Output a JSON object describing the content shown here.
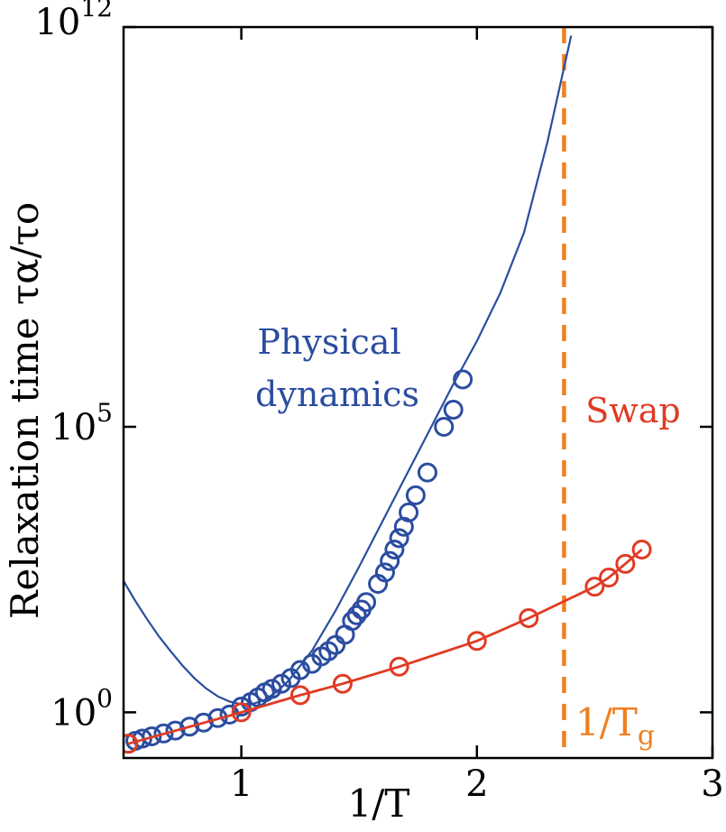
{
  "chart_data": {
    "type": "scatter",
    "xlabel": "1/T",
    "ylabel": "Relaxation time τα/τo",
    "xlim": [
      0.5,
      3.0
    ],
    "ylim_log10": [
      -0.8,
      12.0
    ],
    "x_ticks": [
      {
        "value": 1,
        "label": "1"
      },
      {
        "value": 2,
        "label": "2"
      },
      {
        "value": 3,
        "label": "3"
      }
    ],
    "y_ticks": [
      {
        "value": 0,
        "base": "10",
        "exp": "0"
      },
      {
        "value": 5,
        "base": "10",
        "exp": "5"
      },
      {
        "value": 12,
        "base": "10",
        "exp": "12"
      }
    ],
    "series": [
      {
        "name": "Physical dynamics",
        "label_lines": [
          "Physical",
          "dynamics"
        ],
        "color": "#2b4da0",
        "points": [
          [
            0.52,
            -0.55
          ],
          [
            0.55,
            -0.5
          ],
          [
            0.58,
            -0.46
          ],
          [
            0.62,
            -0.42
          ],
          [
            0.67,
            -0.37
          ],
          [
            0.72,
            -0.32
          ],
          [
            0.78,
            -0.25
          ],
          [
            0.84,
            -0.18
          ],
          [
            0.9,
            -0.1
          ],
          [
            0.95,
            -0.04
          ],
          [
            1.0,
            0.1
          ],
          [
            1.04,
            0.18
          ],
          [
            1.07,
            0.26
          ],
          [
            1.1,
            0.35
          ],
          [
            1.13,
            0.41
          ],
          [
            1.17,
            0.5
          ],
          [
            1.21,
            0.6
          ],
          [
            1.25,
            0.74
          ],
          [
            1.3,
            0.85
          ],
          [
            1.34,
            0.98
          ],
          [
            1.37,
            1.07
          ],
          [
            1.4,
            1.18
          ],
          [
            1.44,
            1.36
          ],
          [
            1.47,
            1.6
          ],
          [
            1.49,
            1.7
          ],
          [
            1.51,
            1.8
          ],
          [
            1.53,
            1.93
          ],
          [
            1.58,
            2.25
          ],
          [
            1.61,
            2.45
          ],
          [
            1.63,
            2.65
          ],
          [
            1.65,
            2.85
          ],
          [
            1.67,
            3.05
          ],
          [
            1.69,
            3.25
          ],
          [
            1.71,
            3.5
          ],
          [
            1.74,
            3.8
          ],
          [
            1.79,
            4.2
          ],
          [
            1.86,
            5.0
          ],
          [
            1.9,
            5.3
          ],
          [
            1.94,
            5.83
          ]
        ],
        "fit": [
          [
            0.5,
            2.3
          ],
          [
            0.55,
            1.95
          ],
          [
            0.6,
            1.63
          ],
          [
            0.65,
            1.33
          ],
          [
            0.7,
            1.07
          ],
          [
            0.75,
            0.82
          ],
          [
            0.8,
            0.6
          ],
          [
            0.85,
            0.42
          ],
          [
            0.9,
            0.28
          ],
          [
            0.95,
            0.19
          ],
          [
            1.0,
            0.14
          ],
          [
            1.05,
            0.15
          ],
          [
            1.1,
            0.22
          ],
          [
            1.15,
            0.36
          ],
          [
            1.2,
            0.55
          ],
          [
            1.3,
            1.08
          ],
          [
            1.4,
            1.78
          ],
          [
            1.5,
            2.55
          ],
          [
            1.6,
            3.35
          ],
          [
            1.7,
            4.15
          ],
          [
            1.8,
            4.95
          ],
          [
            1.9,
            5.75
          ],
          [
            2.0,
            6.5
          ],
          [
            2.1,
            7.35
          ],
          [
            2.2,
            8.4
          ],
          [
            2.3,
            10.0
          ],
          [
            2.4,
            11.85
          ]
        ]
      },
      {
        "name": "Swap",
        "label_lines": [
          "Swap"
        ],
        "color": "#e03b24",
        "points": [
          [
            0.52,
            -0.55
          ],
          [
            1.0,
            0.0
          ],
          [
            1.25,
            0.3
          ],
          [
            1.43,
            0.5
          ],
          [
            1.67,
            0.8
          ],
          [
            2.0,
            1.25
          ],
          [
            2.22,
            1.65
          ],
          [
            2.5,
            2.2
          ],
          [
            2.56,
            2.36
          ],
          [
            2.63,
            2.6
          ],
          [
            2.7,
            2.85
          ]
        ]
      }
    ],
    "annotations": [
      {
        "name": "glass-transition",
        "label_base": "1/T",
        "label_sub": "g",
        "x": 2.37,
        "color": "#f07f1f",
        "style": "dashed"
      }
    ]
  }
}
